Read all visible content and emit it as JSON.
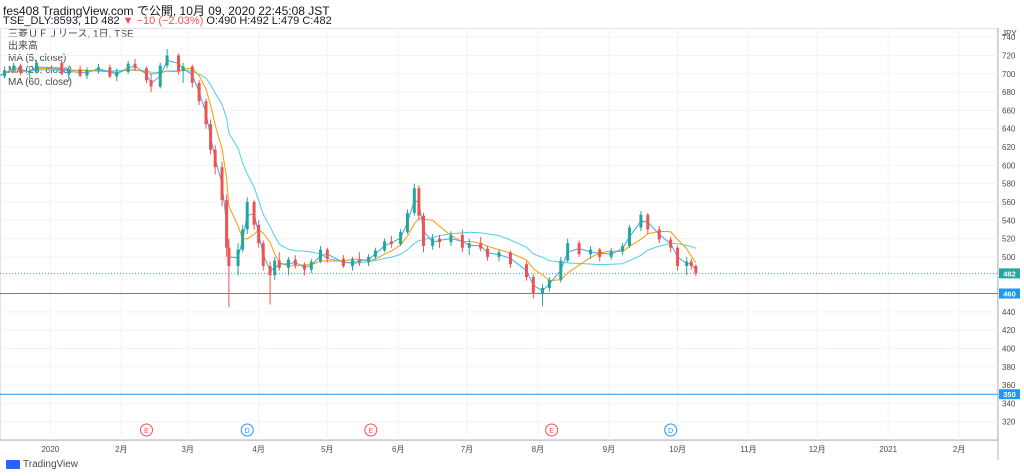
{
  "header": {
    "line1": "fes408 TradingView.com で公開, 10月 09, 2020 22:45:08 JST",
    "symbol": "TSE_DLY:8593, 1D 482",
    "change": "▼ −10 (−2.03%)",
    "ohlc": "O:490 H:492 L:479 C:482"
  },
  "legend": [
    "三菱ＵＦＪリース, 1日, TSE",
    "出来高",
    "MA (5, close)",
    "MA (20, close)",
    "MA (60, close)"
  ],
  "brand": "TradingView",
  "colors": {
    "up": "#26a69a",
    "down": "#ef5350",
    "ma5": "#42a5f5",
    "ma20": "#ff9800",
    "ma60": "#4dd0e1",
    "hline": "#2196f3",
    "last": "#26a69a"
  },
  "chart_data": {
    "type": "candlestick",
    "currency_label": "JPY",
    "ylim": [
      300,
      750
    ],
    "yticks": [
      320,
      340,
      360,
      380,
      400,
      420,
      440,
      460,
      480,
      500,
      520,
      540,
      560,
      580,
      600,
      620,
      640,
      660,
      680,
      700,
      720,
      740
    ],
    "x_labels": [
      {
        "label": "2020",
        "date": "2020-01-01"
      },
      {
        "label": "2月",
        "date": "2020-02-01"
      },
      {
        "label": "3月",
        "date": "2020-03-01"
      },
      {
        "label": "4月",
        "date": "2020-04-01"
      },
      {
        "label": "5月",
        "date": "2020-05-01"
      },
      {
        "label": "6月",
        "date": "2020-06-01"
      },
      {
        "label": "7月",
        "date": "2020-07-01"
      },
      {
        "label": "8月",
        "date": "2020-08-01"
      },
      {
        "label": "9月",
        "date": "2020-09-01"
      },
      {
        "label": "10月",
        "date": "2020-10-01"
      },
      {
        "label": "11月",
        "date": "2020-11-01"
      },
      {
        "label": "12月",
        "date": "2020-12-01"
      },
      {
        "label": "2021",
        "date": "2021-01-01"
      },
      {
        "label": "2月",
        "date": "2021-02-01"
      }
    ],
    "x_range": [
      "2019-12-10",
      "2021-02-18"
    ],
    "horizontal_lines": [
      {
        "value": 460,
        "label": "460"
      },
      {
        "value": 350,
        "label": "350"
      }
    ],
    "last_price": {
      "value": 482,
      "label": "482"
    },
    "events": [
      {
        "type": "E",
        "date": "2020-02-12"
      },
      {
        "type": "D",
        "date": "2020-03-27"
      },
      {
        "type": "E",
        "date": "2020-05-20"
      },
      {
        "type": "E",
        "date": "2020-08-07"
      },
      {
        "type": "D",
        "date": "2020-09-28"
      }
    ],
    "candles": [
      [
        "2019-12-09",
        703,
        705,
        693,
        697
      ],
      [
        "2019-12-12",
        697,
        708,
        695,
        704
      ],
      [
        "2019-12-16",
        704,
        712,
        701,
        709
      ],
      [
        "2019-12-19",
        709,
        711,
        698,
        701
      ],
      [
        "2019-12-23",
        701,
        706,
        695,
        703
      ],
      [
        "2019-12-26",
        703,
        715,
        700,
        712
      ],
      [
        "2020-01-06",
        712,
        714,
        698,
        700
      ],
      [
        "2020-01-09",
        700,
        708,
        692,
        705
      ],
      [
        "2020-01-14",
        705,
        709,
        696,
        698
      ],
      [
        "2020-01-17",
        698,
        707,
        694,
        704
      ],
      [
        "2020-01-22",
        704,
        711,
        700,
        707
      ],
      [
        "2020-01-27",
        707,
        710,
        695,
        697
      ],
      [
        "2020-01-30",
        697,
        706,
        692,
        702
      ],
      [
        "2020-02-04",
        702,
        714,
        700,
        711
      ],
      [
        "2020-02-07",
        711,
        716,
        703,
        706
      ],
      [
        "2020-02-12",
        706,
        708,
        690,
        693
      ],
      [
        "2020-02-14",
        693,
        700,
        680,
        686
      ],
      [
        "2020-02-18",
        686,
        712,
        684,
        709
      ],
      [
        "2020-02-21",
        709,
        727,
        706,
        720
      ],
      [
        "2020-02-26",
        720,
        722,
        699,
        703
      ],
      [
        "2020-02-28",
        703,
        712,
        690,
        708
      ],
      [
        "2020-03-03",
        708,
        710,
        685,
        690
      ],
      [
        "2020-03-06",
        690,
        693,
        666,
        670
      ],
      [
        "2020-03-09",
        670,
        673,
        640,
        645
      ],
      [
        "2020-03-11",
        645,
        650,
        612,
        617
      ],
      [
        "2020-03-13",
        617,
        622,
        590,
        598
      ],
      [
        "2020-03-16",
        598,
        604,
        555,
        562
      ],
      [
        "2020-03-18",
        562,
        568,
        500,
        510
      ],
      [
        "2020-03-19",
        510,
        520,
        445,
        490
      ],
      [
        "2020-03-23",
        490,
        515,
        480,
        508
      ],
      [
        "2020-03-25",
        508,
        535,
        505,
        530
      ],
      [
        "2020-03-27",
        530,
        565,
        525,
        560
      ],
      [
        "2020-03-30",
        560,
        562,
        530,
        535
      ],
      [
        "2020-04-01",
        535,
        540,
        510,
        515
      ],
      [
        "2020-04-03",
        515,
        518,
        485,
        490
      ],
      [
        "2020-04-06",
        490,
        495,
        448,
        480
      ],
      [
        "2020-04-08",
        480,
        500,
        475,
        496
      ],
      [
        "2020-04-10",
        496,
        505,
        485,
        488
      ],
      [
        "2020-04-14",
        488,
        500,
        480,
        497
      ],
      [
        "2020-04-17",
        497,
        502,
        487,
        491
      ],
      [
        "2020-04-21",
        491,
        494,
        480,
        486
      ],
      [
        "2020-04-24",
        486,
        498,
        482,
        495
      ],
      [
        "2020-04-28",
        495,
        512,
        493,
        508
      ],
      [
        "2020-05-01",
        508,
        510,
        494,
        498
      ],
      [
        "2020-05-08",
        498,
        502,
        488,
        490
      ],
      [
        "2020-05-12",
        490,
        500,
        485,
        497
      ],
      [
        "2020-05-15",
        497,
        505,
        490,
        494
      ],
      [
        "2020-05-19",
        494,
        503,
        490,
        500
      ],
      [
        "2020-05-22",
        500,
        510,
        497,
        507
      ],
      [
        "2020-05-26",
        507,
        520,
        505,
        517
      ],
      [
        "2020-05-29",
        517,
        523,
        510,
        514
      ],
      [
        "2020-06-02",
        514,
        530,
        512,
        527
      ],
      [
        "2020-06-05",
        527,
        552,
        525,
        548
      ],
      [
        "2020-06-08",
        548,
        580,
        545,
        575
      ],
      [
        "2020-06-10",
        575,
        578,
        540,
        545
      ],
      [
        "2020-06-12",
        545,
        548,
        505,
        512
      ],
      [
        "2020-06-16",
        512,
        525,
        508,
        520
      ],
      [
        "2020-06-19",
        520,
        524,
        510,
        516
      ],
      [
        "2020-06-24",
        516,
        528,
        512,
        524
      ],
      [
        "2020-06-29",
        524,
        530,
        505,
        510
      ],
      [
        "2020-07-02",
        510,
        520,
        502,
        515
      ],
      [
        "2020-07-07",
        515,
        522,
        506,
        509
      ],
      [
        "2020-07-10",
        509,
        512,
        496,
        500
      ],
      [
        "2020-07-15",
        500,
        508,
        495,
        505
      ],
      [
        "2020-07-20",
        505,
        507,
        488,
        492
      ],
      [
        "2020-07-27",
        492,
        495,
        474,
        478
      ],
      [
        "2020-07-30",
        478,
        481,
        455,
        460
      ],
      [
        "2020-08-03",
        460,
        470,
        446,
        466
      ],
      [
        "2020-08-06",
        466,
        478,
        462,
        475
      ],
      [
        "2020-08-11",
        475,
        500,
        472,
        496
      ],
      [
        "2020-08-14",
        496,
        520,
        494,
        515
      ],
      [
        "2020-08-19",
        515,
        518,
        500,
        503
      ],
      [
        "2020-08-24",
        503,
        512,
        498,
        508
      ],
      [
        "2020-08-28",
        508,
        510,
        495,
        500
      ],
      [
        "2020-09-02",
        500,
        510,
        497,
        506
      ],
      [
        "2020-09-07",
        506,
        515,
        502,
        512
      ],
      [
        "2020-09-10",
        512,
        535,
        510,
        532
      ],
      [
        "2020-09-15",
        532,
        550,
        528,
        546
      ],
      [
        "2020-09-18",
        546,
        548,
        525,
        530
      ],
      [
        "2020-09-23",
        530,
        534,
        515,
        519
      ],
      [
        "2020-09-28",
        519,
        522,
        505,
        510
      ],
      [
        "2020-10-01",
        510,
        512,
        485,
        490
      ],
      [
        "2020-10-05",
        490,
        500,
        480,
        495
      ],
      [
        "2020-10-07",
        495,
        498,
        486,
        490
      ],
      [
        "2020-10-09",
        490,
        492,
        479,
        482
      ]
    ]
  }
}
